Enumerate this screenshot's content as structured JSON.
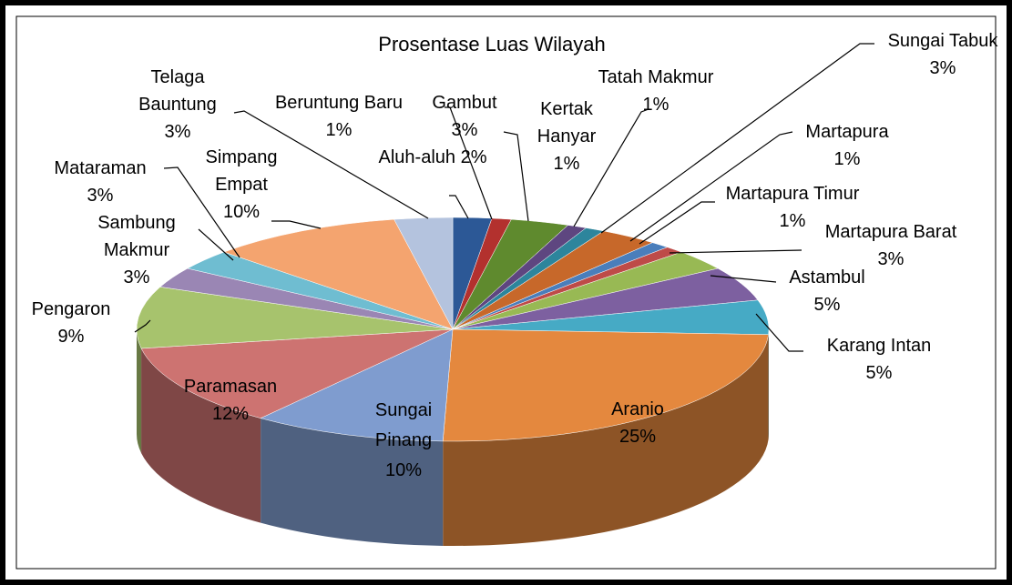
{
  "chart_data": {
    "type": "pie",
    "title": "Prosentase Luas Wilayah",
    "categories": [
      "Aluh-aluh",
      "Beruntung Baru",
      "Gambut",
      "Kertak Hanyar",
      "Tatah Makmur",
      "Sungai Tabuk",
      "Martapura",
      "Martapura Timur",
      "Martapura Barat",
      "Astambul",
      "Karang Intan",
      "Aranio",
      "Sungai Pinang",
      "Paramasan",
      "Pengaron",
      "Sambung Makmur",
      "Mataraman",
      "Simpang Empat",
      "Telaga Bauntung"
    ],
    "values": [
      2,
      1,
      3,
      1,
      1,
      3,
      1,
      1,
      3,
      5,
      5,
      25,
      10,
      12,
      9,
      3,
      3,
      10,
      3
    ],
    "value_labels": [
      "2%",
      "1%",
      "3%",
      "1%",
      "1%",
      "3%",
      "1%",
      "1%",
      "3%",
      "5%",
      "5%",
      "25%",
      "10%",
      "12%",
      "9%",
      "3%",
      "3%",
      "10%",
      "3%"
    ],
    "colors": [
      "#2c5896",
      "#b3312e",
      "#5f8a2e",
      "#5e4680",
      "#2d859c",
      "#c7682a",
      "#4a7ebb",
      "#be4b48",
      "#98b954",
      "#7d60a0",
      "#46aac5",
      "#e4883e",
      "#7f9ccf",
      "#cd7371",
      "#a7c36d",
      "#9a86b4",
      "#6fbdd1",
      "#f4a46f",
      "#b4c3de"
    ]
  }
}
